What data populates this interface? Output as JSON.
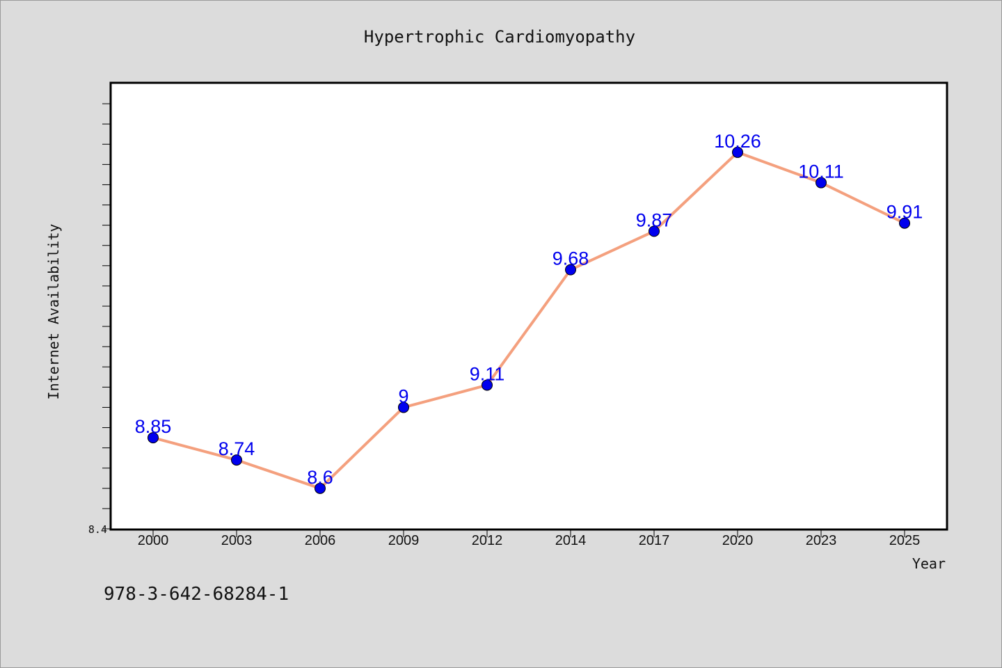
{
  "chart_data": {
    "type": "line",
    "title": "Hypertrophic Cardiomyopathy",
    "xlabel": "Year",
    "ylabel": "Internet Availability",
    "categories": [
      "2000",
      "2003",
      "2006",
      "2009",
      "2012",
      "2014",
      "2017",
      "2020",
      "2023",
      "2025"
    ],
    "series": [
      {
        "values": [
          8.85,
          8.74,
          8.6,
          9.0,
          9.11,
          9.68,
          9.87,
          10.26,
          10.11,
          9.91
        ],
        "labels": [
          "8.85",
          "8.74",
          "8.6",
          "9",
          "9.11",
          "9.68",
          "9.87",
          "10.26",
          "10.11",
          "9.91"
        ],
        "line_color": "#f4a07e",
        "marker_color": "#0000ee"
      }
    ],
    "yticks": [
      {
        "value": 8.4,
        "label": "8.4"
      }
    ],
    "minor_tick_step": 0.1,
    "ylim": [
      8.4,
      10.6
    ],
    "grid": false,
    "legend": "none"
  },
  "footer": {
    "text": "978-3-642-68284-1"
  }
}
